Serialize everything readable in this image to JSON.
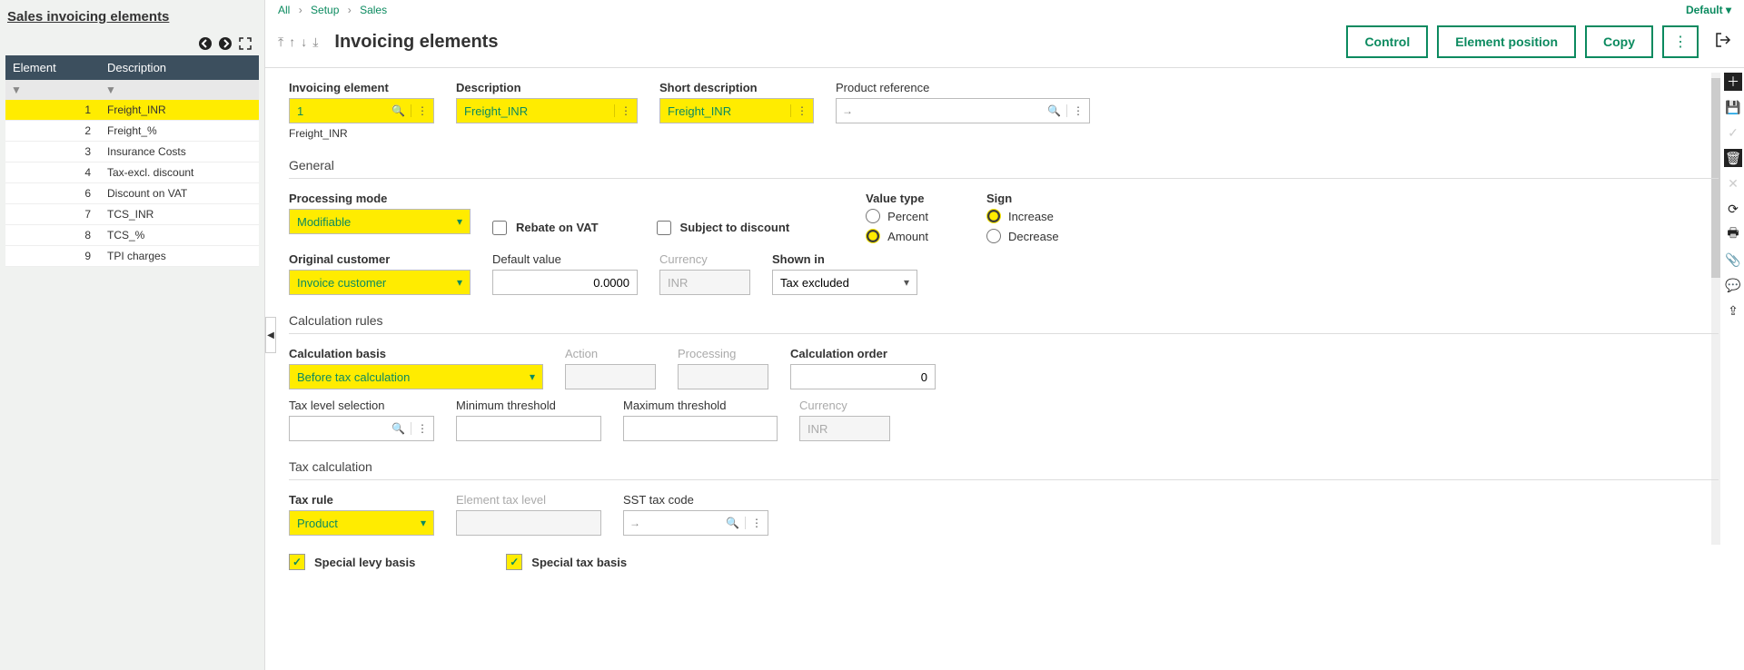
{
  "left": {
    "title": "Sales invoicing elements",
    "columns": {
      "element": "Element",
      "description": "Description"
    },
    "rows": [
      {
        "id": "1",
        "desc": "Freight_INR",
        "selected": true
      },
      {
        "id": "2",
        "desc": "Freight_%"
      },
      {
        "id": "3",
        "desc": "Insurance Costs"
      },
      {
        "id": "4",
        "desc": "Tax-excl. discount"
      },
      {
        "id": "6",
        "desc": "Discount on VAT"
      },
      {
        "id": "7",
        "desc": "TCS_INR"
      },
      {
        "id": "8",
        "desc": "TCS_%"
      },
      {
        "id": "9",
        "desc": "TPI charges"
      }
    ]
  },
  "breadcrumb": {
    "all": "All",
    "setup": "Setup",
    "sales": "Sales"
  },
  "defaultMenu": "Default",
  "header": {
    "title": "Invoicing elements",
    "buttons": {
      "control": "Control",
      "element_position": "Element position",
      "copy": "Copy"
    }
  },
  "fields": {
    "invoicing_element": {
      "label": "Invoicing element",
      "value": "1",
      "helper": "Freight_INR"
    },
    "description": {
      "label": "Description",
      "value": "Freight_INR"
    },
    "short_description": {
      "label": "Short description",
      "value": "Freight_INR"
    },
    "product_reference": {
      "label": "Product reference",
      "value": ""
    },
    "processing_mode": {
      "label": "Processing mode",
      "value": "Modifiable"
    },
    "rebate_vat": {
      "label": "Rebate on VAT",
      "checked": false
    },
    "subject_discount": {
      "label": "Subject to discount",
      "checked": false
    },
    "value_type": {
      "label": "Value type",
      "percent": "Percent",
      "amount": "Amount",
      "selected": "amount"
    },
    "sign": {
      "label": "Sign",
      "increase": "Increase",
      "decrease": "Decrease",
      "selected": "increase"
    },
    "original_customer": {
      "label": "Original customer",
      "value": "Invoice customer"
    },
    "default_value": {
      "label": "Default value",
      "value": "0.0000"
    },
    "currency1": {
      "label": "Currency",
      "value": "INR"
    },
    "shown_in": {
      "label": "Shown in",
      "value": "Tax excluded"
    },
    "calculation_basis": {
      "label": "Calculation basis",
      "value": "Before tax calculation"
    },
    "action": {
      "label": "Action",
      "value": ""
    },
    "processing": {
      "label": "Processing",
      "value": ""
    },
    "calculation_order": {
      "label": "Calculation order",
      "value": "0"
    },
    "tax_level_selection": {
      "label": "Tax level selection",
      "value": ""
    },
    "min_threshold": {
      "label": "Minimum threshold",
      "value": ""
    },
    "max_threshold": {
      "label": "Maximum threshold",
      "value": ""
    },
    "currency2": {
      "label": "Currency",
      "value": "INR"
    },
    "tax_rule": {
      "label": "Tax rule",
      "value": "Product"
    },
    "element_tax_level": {
      "label": "Element tax level",
      "value": ""
    },
    "sst_tax_code": {
      "label": "SST tax code",
      "value": ""
    },
    "special_levy": {
      "label": "Special levy basis",
      "checked": true
    },
    "special_tax": {
      "label": "Special tax basis",
      "checked": true
    }
  },
  "sections": {
    "general": "General",
    "calc_rules": "Calculation rules",
    "tax_calc": "Tax calculation"
  },
  "colors": {
    "accent": "#0b8a5f",
    "highlight": "#ffec00",
    "header_bg": "#3c4f5e"
  }
}
